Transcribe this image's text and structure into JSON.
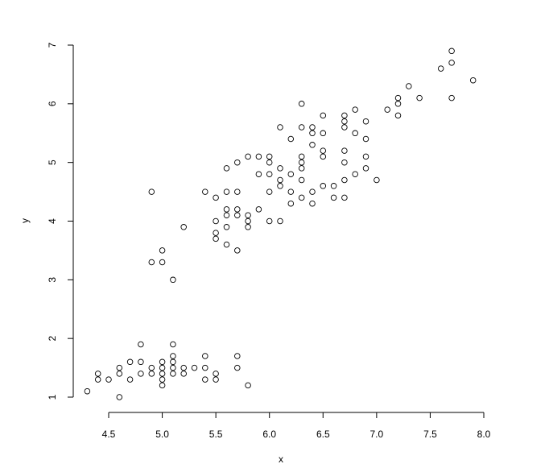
{
  "chart_data": {
    "type": "scatter",
    "title": "",
    "xlabel": "x",
    "ylabel": "y",
    "xlim": [
      4.3,
      7.9
    ],
    "ylim": [
      1,
      6.9
    ],
    "grid": false,
    "marker": "open-circle",
    "x_ticks": [
      "4.5",
      "5.0",
      "5.5",
      "6.0",
      "6.5",
      "7.0",
      "7.5",
      "8.0"
    ],
    "y_ticks": [
      "1",
      "2",
      "3",
      "4",
      "5",
      "6",
      "7"
    ],
    "points": [
      [
        4.3,
        1.1
      ],
      [
        4.4,
        1.3
      ],
      [
        4.4,
        1.4
      ],
      [
        4.5,
        1.3
      ],
      [
        4.6,
        1.0
      ],
      [
        4.6,
        1.4
      ],
      [
        4.6,
        1.5
      ],
      [
        4.7,
        1.3
      ],
      [
        4.7,
        1.6
      ],
      [
        4.8,
        1.4
      ],
      [
        4.8,
        1.6
      ],
      [
        4.8,
        1.9
      ],
      [
        4.9,
        1.4
      ],
      [
        4.9,
        1.5
      ],
      [
        5.0,
        1.2
      ],
      [
        5.0,
        1.3
      ],
      [
        5.0,
        1.4
      ],
      [
        5.0,
        1.5
      ],
      [
        5.0,
        1.6
      ],
      [
        5.1,
        1.4
      ],
      [
        5.1,
        1.5
      ],
      [
        5.1,
        1.6
      ],
      [
        5.1,
        1.7
      ],
      [
        5.1,
        1.9
      ],
      [
        5.2,
        1.4
      ],
      [
        5.2,
        1.5
      ],
      [
        5.3,
        1.5
      ],
      [
        5.4,
        1.3
      ],
      [
        5.4,
        1.5
      ],
      [
        5.4,
        1.7
      ],
      [
        5.5,
        1.3
      ],
      [
        5.5,
        1.4
      ],
      [
        5.7,
        1.5
      ],
      [
        5.7,
        1.7
      ],
      [
        5.8,
        1.2
      ],
      [
        4.9,
        3.3
      ],
      [
        4.9,
        4.5
      ],
      [
        5.0,
        3.3
      ],
      [
        5.0,
        3.5
      ],
      [
        5.1,
        3.0
      ],
      [
        5.2,
        3.9
      ],
      [
        5.4,
        4.5
      ],
      [
        5.5,
        3.7
      ],
      [
        5.5,
        3.8
      ],
      [
        5.5,
        4.0
      ],
      [
        5.5,
        4.4
      ],
      [
        5.6,
        3.6
      ],
      [
        5.6,
        3.9
      ],
      [
        5.6,
        4.1
      ],
      [
        5.6,
        4.2
      ],
      [
        5.6,
        4.5
      ],
      [
        5.6,
        4.9
      ],
      [
        5.7,
        3.5
      ],
      [
        5.7,
        4.1
      ],
      [
        5.7,
        4.2
      ],
      [
        5.7,
        4.5
      ],
      [
        5.7,
        5.0
      ],
      [
        5.8,
        3.9
      ],
      [
        5.8,
        4.0
      ],
      [
        5.8,
        4.1
      ],
      [
        5.8,
        5.1
      ],
      [
        5.9,
        4.2
      ],
      [
        5.9,
        4.8
      ],
      [
        5.9,
        5.1
      ],
      [
        6.0,
        4.0
      ],
      [
        6.0,
        4.5
      ],
      [
        6.0,
        4.8
      ],
      [
        6.0,
        5.0
      ],
      [
        6.0,
        5.1
      ],
      [
        6.1,
        4.0
      ],
      [
        6.1,
        4.6
      ],
      [
        6.1,
        4.7
      ],
      [
        6.1,
        4.9
      ],
      [
        6.1,
        5.6
      ],
      [
        6.2,
        4.3
      ],
      [
        6.2,
        4.5
      ],
      [
        6.2,
        4.8
      ],
      [
        6.2,
        5.4
      ],
      [
        6.3,
        4.4
      ],
      [
        6.3,
        4.7
      ],
      [
        6.3,
        4.9
      ],
      [
        6.3,
        5.0
      ],
      [
        6.3,
        5.1
      ],
      [
        6.3,
        5.6
      ],
      [
        6.3,
        6.0
      ],
      [
        6.4,
        4.3
      ],
      [
        6.4,
        4.5
      ],
      [
        6.4,
        5.3
      ],
      [
        6.4,
        5.5
      ],
      [
        6.4,
        5.6
      ],
      [
        6.5,
        4.6
      ],
      [
        6.5,
        5.1
      ],
      [
        6.5,
        5.2
      ],
      [
        6.5,
        5.5
      ],
      [
        6.5,
        5.8
      ],
      [
        6.6,
        4.4
      ],
      [
        6.6,
        4.6
      ],
      [
        6.7,
        4.4
      ],
      [
        6.7,
        4.7
      ],
      [
        6.7,
        5.0
      ],
      [
        6.7,
        5.2
      ],
      [
        6.7,
        5.6
      ],
      [
        6.7,
        5.7
      ],
      [
        6.7,
        5.8
      ],
      [
        6.8,
        4.8
      ],
      [
        6.8,
        5.5
      ],
      [
        6.8,
        5.9
      ],
      [
        6.9,
        4.9
      ],
      [
        6.9,
        5.1
      ],
      [
        6.9,
        5.4
      ],
      [
        6.9,
        5.7
      ],
      [
        7.0,
        4.7
      ],
      [
        7.1,
        5.9
      ],
      [
        7.2,
        5.8
      ],
      [
        7.2,
        6.0
      ],
      [
        7.2,
        6.1
      ],
      [
        7.3,
        6.3
      ],
      [
        7.4,
        6.1
      ],
      [
        7.6,
        6.6
      ],
      [
        7.7,
        6.1
      ],
      [
        7.7,
        6.7
      ],
      [
        7.7,
        6.9
      ],
      [
        7.9,
        6.4
      ]
    ]
  }
}
